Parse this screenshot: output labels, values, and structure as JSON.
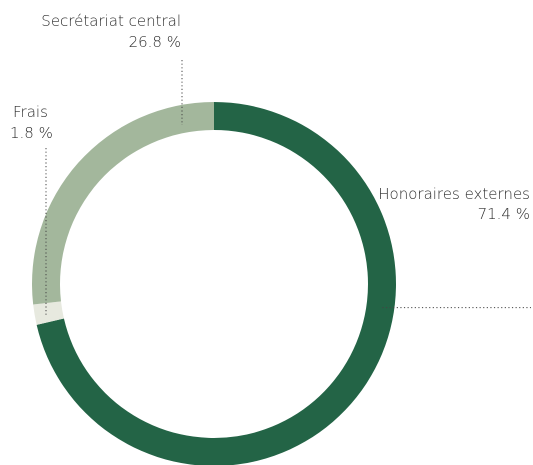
{
  "chart_data": {
    "type": "pie",
    "variant": "donut",
    "title": "",
    "start_angle_deg": 0,
    "direction": "clockwise",
    "slices": [
      {
        "name": "Honoraires externes",
        "value": 71.4,
        "label": "71.4 %",
        "color": "#236446"
      },
      {
        "name": "Frais",
        "value": 1.8,
        "label": "1.8 %",
        "color": "#e7e9df"
      },
      {
        "name": "Secrétariat central",
        "value": 26.8,
        "label": "26.8 %",
        "color": "#a3b79c"
      }
    ]
  }
}
